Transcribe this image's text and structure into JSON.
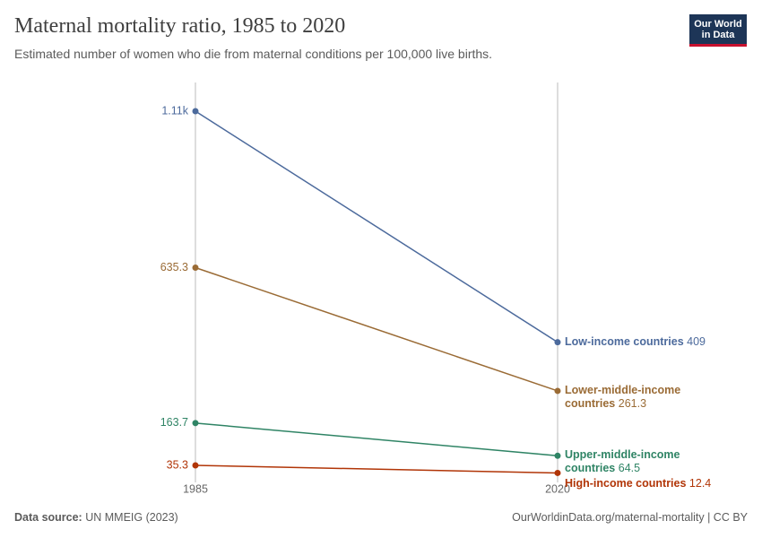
{
  "chart_data": {
    "type": "slope",
    "title": "Maternal mortality ratio, 1985 to 2020",
    "subtitle": "Estimated number of women who die from maternal conditions per 100,000 live births.",
    "logo": [
      "Our World",
      "in Data"
    ],
    "source_label": "Data source:",
    "source": "UN MMEIG (2023)",
    "url": "OurWorldinData.org/maternal-mortality | CC BY",
    "categories": [
      "1985",
      "2020"
    ],
    "ylim": [
      0,
      1110
    ],
    "series": [
      {
        "name": "Low-income countries",
        "color": "#4c6a9c",
        "values": [
          1110,
          409
        ],
        "value_labels": [
          "1.11k",
          "409"
        ]
      },
      {
        "name": "Lower-middle-income countries",
        "color": "#9a6b35",
        "values": [
          635.3,
          261.3
        ]
      },
      {
        "name": "Upper-middle-income countries",
        "color": "#2f8465",
        "values": [
          163.7,
          64.5
        ]
      },
      {
        "name": "High-income countries",
        "color": "#b13507",
        "values": [
          35.3,
          12.4
        ]
      }
    ]
  }
}
